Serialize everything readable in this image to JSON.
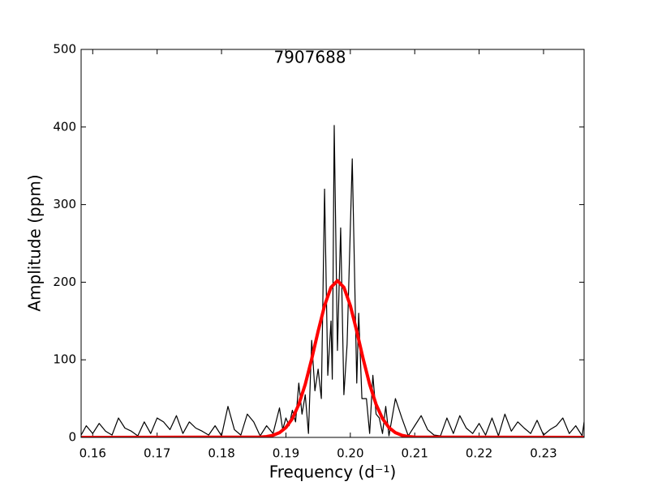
{
  "chart_data": {
    "type": "line",
    "title": "7907688",
    "xlabel": "Frequency (d⁻¹)",
    "ylabel": "Amplitude (ppm)",
    "xlim": [
      0.1582,
      0.2363
    ],
    "ylim": [
      0,
      500
    ],
    "xticks": [
      0.16,
      0.17,
      0.18,
      0.19,
      {
        "value": 0.2,
        "label": "0.20"
      },
      0.21,
      0.22,
      0.23
    ],
    "yticks": [
      0,
      100,
      200,
      300,
      400,
      500
    ],
    "grid": false,
    "series": [
      {
        "color": "#000000",
        "width": 1.2,
        "x": [
          0.1582,
          0.159,
          0.16,
          0.161,
          0.162,
          0.163,
          0.164,
          0.165,
          0.166,
          0.167,
          0.168,
          0.169,
          0.17,
          0.171,
          0.172,
          0.173,
          0.174,
          0.175,
          0.176,
          0.177,
          0.178,
          0.179,
          0.18,
          0.181,
          0.182,
          0.183,
          0.184,
          0.185,
          0.186,
          0.187,
          0.188,
          0.189,
          0.1895,
          0.19,
          0.1905,
          0.191,
          0.1915,
          0.192,
          0.1925,
          0.193,
          0.1935,
          0.194,
          0.1945,
          0.195,
          0.1955,
          0.196,
          0.1965,
          0.197,
          0.1972,
          0.1975,
          0.198,
          0.1985,
          0.199,
          0.1995,
          0.2003,
          0.201,
          0.2013,
          0.2018,
          0.2025,
          0.203,
          0.2035,
          0.204,
          0.2045,
          0.205,
          0.2055,
          0.206,
          0.207,
          0.208,
          0.209,
          0.21,
          0.211,
          0.212,
          0.213,
          0.214,
          0.215,
          0.216,
          0.217,
          0.218,
          0.219,
          0.22,
          0.221,
          0.222,
          0.223,
          0.224,
          0.225,
          0.226,
          0.227,
          0.228,
          0.229,
          0.23,
          0.231,
          0.232,
          0.233,
          0.234,
          0.235,
          0.236,
          0.2363
        ],
        "values": [
          3,
          15,
          5,
          18,
          8,
          3,
          25,
          12,
          8,
          2,
          20,
          5,
          25,
          20,
          10,
          28,
          5,
          20,
          12,
          8,
          3,
          15,
          2,
          40,
          10,
          3,
          30,
          20,
          2,
          15,
          5,
          38,
          10,
          25,
          15,
          35,
          20,
          70,
          30,
          55,
          5,
          125,
          60,
          88,
          50,
          320,
          80,
          150,
          75,
          402,
          112,
          270,
          55,
          120,
          359,
          70,
          160,
          50,
          50,
          5,
          80,
          30,
          25,
          5,
          40,
          2,
          50,
          25,
          2,
          15,
          28,
          10,
          3,
          2,
          25,
          5,
          28,
          12,
          5,
          18,
          3,
          25,
          2,
          30,
          8,
          20,
          12,
          5,
          22,
          3,
          10,
          15,
          25,
          5,
          15,
          2,
          20
        ]
      },
      {
        "color": "#ff0000",
        "width": 4,
        "x": [
          0.1582,
          0.186,
          0.187,
          0.188,
          0.189,
          0.19,
          0.191,
          0.192,
          0.193,
          0.194,
          0.195,
          0.196,
          0.197,
          0.198,
          0.199,
          0.2,
          0.201,
          0.202,
          0.203,
          0.204,
          0.205,
          0.206,
          0.207,
          0.208,
          0.209,
          0.21,
          0.2363
        ],
        "values": [
          0,
          0.4,
          1.1,
          2.7,
          6.1,
          12.7,
          24.2,
          42.5,
          68.4,
          101,
          136.8,
          169.9,
          193.4,
          202,
          193.4,
          169.9,
          136.8,
          101,
          68.4,
          42.5,
          24.2,
          12.7,
          6.1,
          2.7,
          1.1,
          0.4,
          0
        ]
      }
    ]
  }
}
